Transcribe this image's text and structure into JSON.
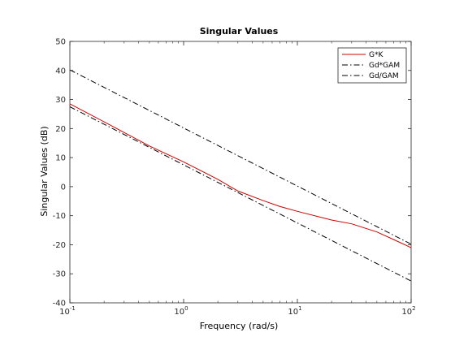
{
  "chart_data": {
    "type": "line",
    "title": "Singular Values",
    "xlabel": "Frequency (rad/s)",
    "ylabel": "Singular Values (dB)",
    "xscale": "log",
    "xlim": [
      0.1,
      100
    ],
    "ylim": [
      -40,
      50
    ],
    "xticks": [
      {
        "base": "10",
        "exp": "-1"
      },
      {
        "base": "10",
        "exp": "0"
      },
      {
        "base": "10",
        "exp": "1"
      },
      {
        "base": "10",
        "exp": "2"
      }
    ],
    "yticks": [
      "-40",
      "-30",
      "-20",
      "-10",
      "0",
      "10",
      "20",
      "30",
      "40",
      "50"
    ],
    "grid": false,
    "legend_position": "top-right",
    "series": [
      {
        "name": "G*K",
        "color": "#d00000",
        "dash": "solid",
        "x": [
          0.1,
          0.2,
          0.5,
          1,
          2,
          3,
          5,
          7,
          10,
          20,
          30,
          50,
          70,
          100
        ],
        "y": [
          28.5,
          22.3,
          14.0,
          8.5,
          2.5,
          -1.5,
          -4.8,
          -6.8,
          -8.5,
          -11.5,
          -12.8,
          -15.6,
          -18.2,
          -21.0
        ]
      },
      {
        "name": "Gd*GAM",
        "color": "#000000",
        "dash": "dashdot",
        "x": [
          0.1,
          100
        ],
        "y": [
          40.2,
          -19.8
        ]
      },
      {
        "name": "Gd/GAM",
        "color": "#000000",
        "dash": "dashdot",
        "x": [
          0.1,
          1,
          10,
          100
        ],
        "y": [
          27.5,
          7.5,
          -12.5,
          -32.5
        ]
      }
    ]
  }
}
